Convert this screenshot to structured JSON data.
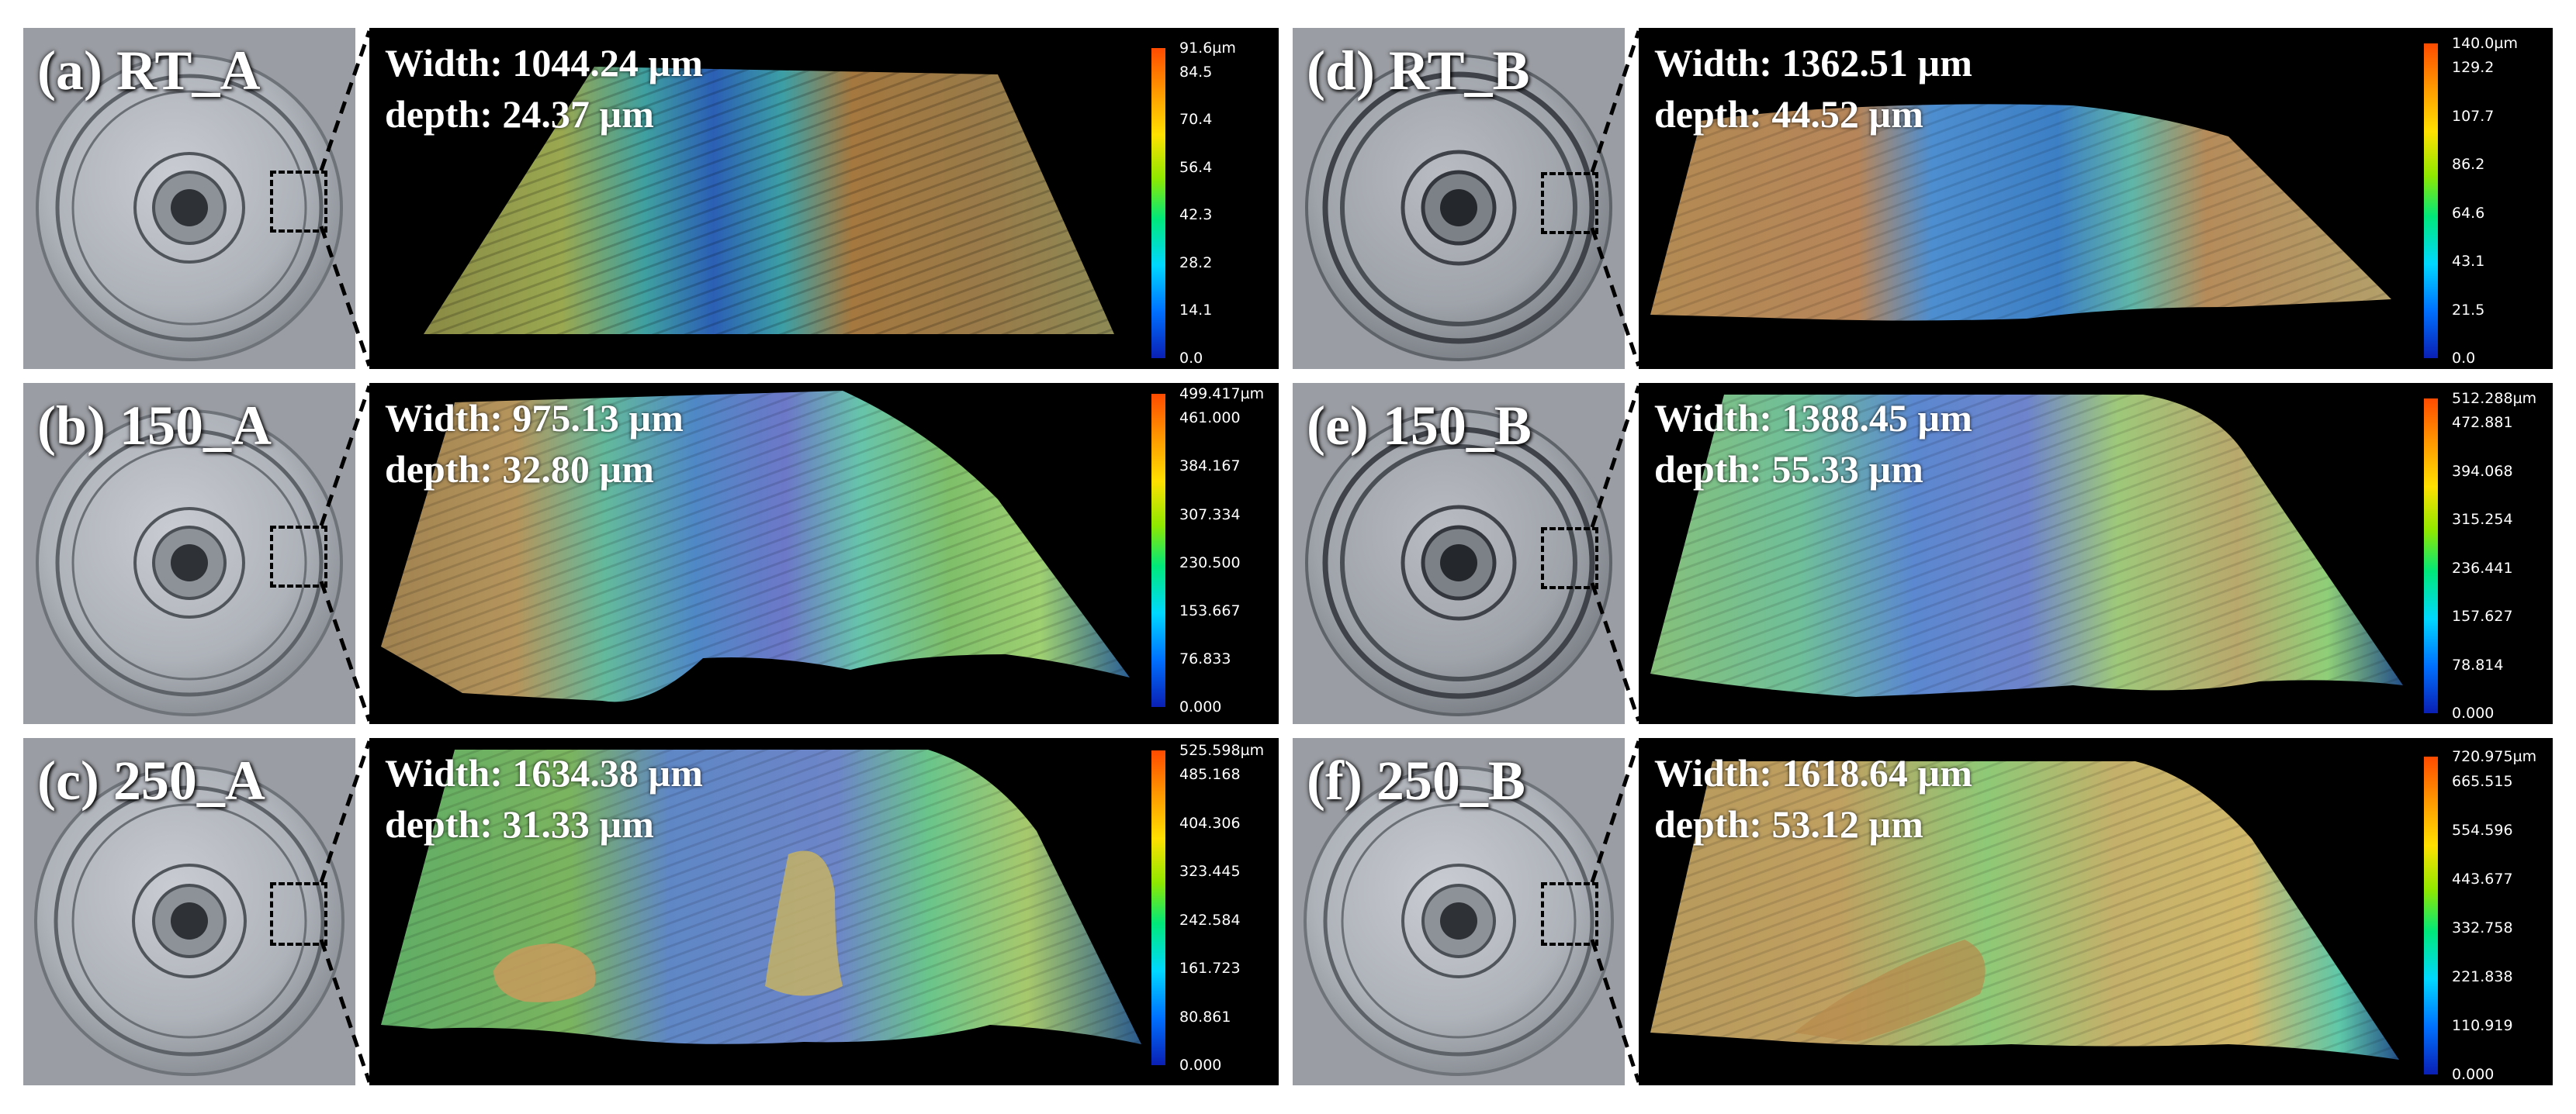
{
  "panels": [
    {
      "label": "(a) RT_A",
      "width": "Width: 1044.24 µm",
      "depth": "depth: 24.37 µm",
      "scale": [
        "91.6µm",
        "84.5",
        "70.4",
        "56.4",
        "42.3",
        "28.2",
        "14.1",
        "0.0"
      ]
    },
    {
      "label": "(b) 150_A",
      "width": "Width: 975.13 µm",
      "depth": "depth: 32.80 µm",
      "scale": [
        "499.417µm",
        "461.000",
        "384.167",
        "307.334",
        "230.500",
        "153.667",
        "76.833",
        "0.000"
      ]
    },
    {
      "label": "(c) 250_A",
      "width": "Width: 1634.38 µm",
      "depth": "depth: 31.33 µm",
      "scale": [
        "525.598µm",
        "485.168",
        "404.306",
        "323.445",
        "242.584",
        "161.723",
        "80.861",
        "0.000"
      ]
    },
    {
      "label": "(d) RT_B",
      "width": "Width: 1362.51 µm",
      "depth": "depth: 44.52 µm",
      "scale": [
        "140.0µm",
        "129.2",
        "107.7",
        "86.2",
        "64.6",
        "43.1",
        "21.5",
        "0.0"
      ]
    },
    {
      "label": "(e) 150_B",
      "width": "Width: 1388.45 µm",
      "depth": "depth: 55.33 µm",
      "scale": [
        "512.288µm",
        "472.881",
        "394.068",
        "315.254",
        "236.441",
        "157.627",
        "78.814",
        "0.000"
      ]
    },
    {
      "label": "(f) 250_B",
      "width": "Width: 1618.64 µm",
      "depth": "depth: 53.12 µm",
      "scale": [
        "720.975µm",
        "665.515",
        "554.596",
        "443.677",
        "332.758",
        "221.838",
        "110.919",
        "0.000"
      ]
    }
  ],
  "colors": {
    "background": "#000000",
    "text": "#ffffff",
    "photo_gray": "#9a9da3"
  }
}
